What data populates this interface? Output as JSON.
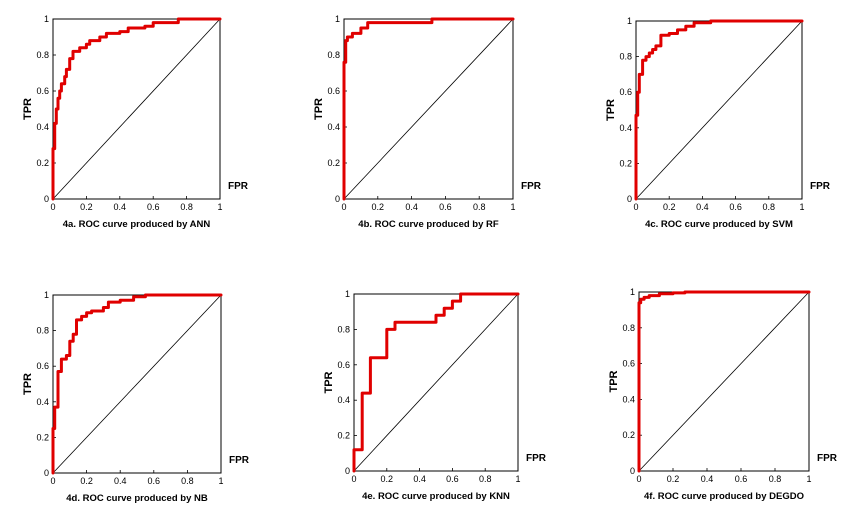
{
  "figure": {
    "curve_color": "#e00000",
    "diagonal_color": "#000000",
    "frame_color": "#000000"
  },
  "chart_data": [
    {
      "type": "line",
      "title": "4a. ROC curve produced by ANN",
      "xlabel": "FPR",
      "ylabel": "TPR",
      "xlim": [
        0,
        1
      ],
      "ylim": [
        0,
        1
      ],
      "xticks": [
        "0",
        "0.2",
        "0.4",
        "0.6",
        "0.8",
        "1"
      ],
      "yticks": [
        "0",
        "0.2",
        "0.4",
        "0.6",
        "0.8",
        "1"
      ],
      "grid": false,
      "x": [
        0,
        0,
        0.01,
        0.01,
        0.02,
        0.02,
        0.03,
        0.03,
        0.04,
        0.04,
        0.05,
        0.05,
        0.07,
        0.07,
        0.08,
        0.08,
        0.1,
        0.1,
        0.12,
        0.12,
        0.16,
        0.16,
        0.2,
        0.2,
        0.22,
        0.22,
        0.28,
        0.28,
        0.32,
        0.32,
        0.4,
        0.4,
        0.45,
        0.45,
        0.55,
        0.55,
        0.6,
        0.6,
        0.75,
        0.75,
        1
      ],
      "y": [
        0,
        0.28,
        0.28,
        0.42,
        0.42,
        0.5,
        0.5,
        0.56,
        0.56,
        0.6,
        0.6,
        0.64,
        0.64,
        0.68,
        0.68,
        0.72,
        0.72,
        0.78,
        0.78,
        0.82,
        0.82,
        0.84,
        0.84,
        0.86,
        0.86,
        0.88,
        0.88,
        0.9,
        0.9,
        0.92,
        0.92,
        0.93,
        0.93,
        0.95,
        0.95,
        0.96,
        0.96,
        0.98,
        0.98,
        1,
        1
      ]
    },
    {
      "type": "line",
      "title": "4b. ROC curve produced by RF",
      "xlabel": "FPR",
      "ylabel": "TPR",
      "xlim": [
        0,
        1
      ],
      "ylim": [
        0,
        1
      ],
      "xticks": [
        "0",
        "0.2",
        "0.4",
        "0.6",
        "0.8",
        "1"
      ],
      "yticks": [
        "0",
        "0.2",
        "0.4",
        "0.6",
        "0.8",
        "1"
      ],
      "grid": false,
      "x": [
        0,
        0,
        0.01,
        0.01,
        0.02,
        0.02,
        0.05,
        0.05,
        0.1,
        0.1,
        0.14,
        0.14,
        0.52,
        0.52,
        1
      ],
      "y": [
        0,
        0.76,
        0.76,
        0.88,
        0.88,
        0.9,
        0.9,
        0.92,
        0.92,
        0.95,
        0.95,
        0.98,
        0.98,
        1,
        1
      ]
    },
    {
      "type": "line",
      "title": "4c. ROC curve produced by SVM",
      "xlabel": "FPR",
      "ylabel": "TPR",
      "xlim": [
        0,
        1
      ],
      "ylim": [
        0,
        1
      ],
      "xticks": [
        "0",
        "0.2",
        "0.4",
        "0.6",
        "0.8",
        "1"
      ],
      "yticks": [
        "0",
        "0.2",
        "0.4",
        "0.6",
        "0.8",
        "1"
      ],
      "grid": false,
      "x": [
        0,
        0,
        0.01,
        0.01,
        0.02,
        0.02,
        0.04,
        0.04,
        0.06,
        0.06,
        0.08,
        0.08,
        0.1,
        0.1,
        0.12,
        0.12,
        0.15,
        0.15,
        0.2,
        0.2,
        0.25,
        0.25,
        0.3,
        0.3,
        0.35,
        0.35,
        0.45,
        0.45,
        0.7,
        0.7,
        1
      ],
      "y": [
        0,
        0.47,
        0.47,
        0.6,
        0.6,
        0.7,
        0.7,
        0.78,
        0.78,
        0.8,
        0.8,
        0.82,
        0.82,
        0.84,
        0.84,
        0.86,
        0.86,
        0.92,
        0.92,
        0.93,
        0.93,
        0.95,
        0.95,
        0.97,
        0.97,
        0.99,
        0.99,
        1,
        1,
        1,
        1
      ]
    },
    {
      "type": "line",
      "title": "4d. ROC curve produced by NB",
      "xlabel": "FPR",
      "ylabel": "TPR",
      "xlim": [
        0,
        1
      ],
      "ylim": [
        0,
        1
      ],
      "xticks": [
        "0",
        "0.2",
        "0.4",
        "0.6",
        "0.8",
        "1"
      ],
      "yticks": [
        "0",
        "0.2",
        "0.4",
        "0.6",
        "0.8",
        "1"
      ],
      "grid": false,
      "x": [
        0,
        0,
        0.01,
        0.01,
        0.03,
        0.03,
        0.05,
        0.05,
        0.08,
        0.08,
        0.1,
        0.1,
        0.12,
        0.12,
        0.14,
        0.14,
        0.17,
        0.17,
        0.2,
        0.2,
        0.23,
        0.23,
        0.3,
        0.3,
        0.33,
        0.33,
        0.4,
        0.4,
        0.48,
        0.48,
        0.55,
        0.55,
        0.8,
        0.8,
        1
      ],
      "y": [
        0,
        0.25,
        0.25,
        0.37,
        0.37,
        0.57,
        0.57,
        0.64,
        0.64,
        0.66,
        0.66,
        0.74,
        0.74,
        0.78,
        0.78,
        0.86,
        0.86,
        0.88,
        0.88,
        0.9,
        0.9,
        0.91,
        0.91,
        0.93,
        0.93,
        0.96,
        0.96,
        0.97,
        0.97,
        0.99,
        0.99,
        1,
        1,
        1,
        1
      ]
    },
    {
      "type": "line",
      "title": "4e. ROC curve produced by KNN",
      "xlabel": "FPR",
      "ylabel": "TPR",
      "xlim": [
        0,
        1
      ],
      "ylim": [
        0,
        1
      ],
      "xticks": [
        "0",
        "0.2",
        "0.4",
        "0.6",
        "0.8",
        "1"
      ],
      "yticks": [
        "0",
        "0.2",
        "0.4",
        "0.6",
        "0.8",
        "1"
      ],
      "grid": false,
      "x": [
        0,
        0,
        0.05,
        0.05,
        0.1,
        0.1,
        0.2,
        0.2,
        0.25,
        0.25,
        0.5,
        0.5,
        0.55,
        0.55,
        0.6,
        0.6,
        0.65,
        0.65,
        1
      ],
      "y": [
        0,
        0.12,
        0.12,
        0.44,
        0.44,
        0.64,
        0.64,
        0.8,
        0.8,
        0.84,
        0.84,
        0.88,
        0.88,
        0.92,
        0.92,
        0.96,
        0.96,
        1,
        1
      ]
    },
    {
      "type": "line",
      "title": "4f. ROC curve produced by DEGDO",
      "xlabel": "FPR",
      "ylabel": "TPR",
      "xlim": [
        0,
        1
      ],
      "ylim": [
        0,
        1
      ],
      "xticks": [
        "0",
        "0.2",
        "0.4",
        "0.6",
        "0.8",
        "1"
      ],
      "yticks": [
        "0",
        "0.2",
        "0.4",
        "0.6",
        "0.8",
        "1"
      ],
      "grid": false,
      "x": [
        0,
        0,
        0.01,
        0.01,
        0.03,
        0.03,
        0.06,
        0.06,
        0.12,
        0.12,
        0.2,
        0.2,
        0.27,
        0.27,
        1
      ],
      "y": [
        0,
        0.94,
        0.94,
        0.96,
        0.96,
        0.97,
        0.97,
        0.98,
        0.98,
        0.99,
        0.99,
        0.995,
        0.995,
        1,
        1
      ]
    }
  ]
}
